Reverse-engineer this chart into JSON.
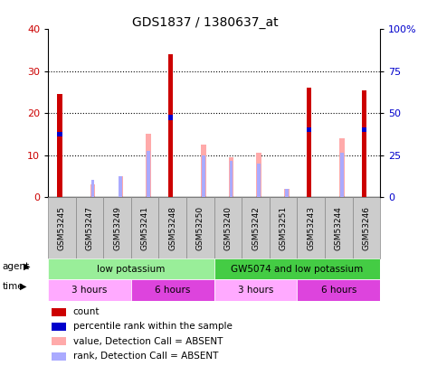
{
  "title": "GDS1837 / 1380637_at",
  "samples": [
    "GSM53245",
    "GSM53247",
    "GSM53249",
    "GSM53241",
    "GSM53248",
    "GSM53250",
    "GSM53240",
    "GSM53242",
    "GSM53251",
    "GSM53243",
    "GSM53244",
    "GSM53246"
  ],
  "count": [
    24.5,
    0,
    0,
    0,
    34,
    0,
    0,
    0,
    0,
    26,
    0,
    25.5
  ],
  "percentile_rank": [
    15,
    0,
    0,
    0,
    19,
    0,
    0,
    0,
    0,
    16,
    0,
    16
  ],
  "value_absent": [
    0,
    3,
    5,
    15,
    0,
    12.5,
    9.5,
    10.5,
    2,
    0,
    14,
    0
  ],
  "rank_absent": [
    0,
    4,
    5,
    11,
    0,
    10,
    8.5,
    8,
    2,
    0,
    10.5,
    0
  ],
  "ylim_left": [
    0,
    40
  ],
  "ylim_right": [
    0,
    100
  ],
  "yticks_left": [
    0,
    10,
    20,
    30,
    40
  ],
  "yticks_right": [
    0,
    25,
    50,
    75,
    100
  ],
  "ytick_labels_right": [
    "0",
    "25",
    "50",
    "75",
    "100%"
  ],
  "color_count": "#cc0000",
  "color_rank": "#0000cc",
  "color_value_absent": "#ffaaaa",
  "color_rank_absent": "#aaaaff",
  "agent_groups": [
    {
      "label": "low potassium",
      "start": 0,
      "end": 6,
      "color": "#99ee99"
    },
    {
      "label": "GW5074 and low potassium",
      "start": 6,
      "end": 12,
      "color": "#44cc44"
    }
  ],
  "time_groups": [
    {
      "label": "3 hours",
      "start": 0,
      "end": 3,
      "color": "#ffaaff"
    },
    {
      "label": "6 hours",
      "start": 3,
      "end": 6,
      "color": "#dd44dd"
    },
    {
      "label": "3 hours",
      "start": 6,
      "end": 9,
      "color": "#ffaaff"
    },
    {
      "label": "6 hours",
      "start": 9,
      "end": 12,
      "color": "#dd44dd"
    }
  ],
  "legend_items": [
    {
      "label": "count",
      "color": "#cc0000"
    },
    {
      "label": "percentile rank within the sample",
      "color": "#0000cc"
    },
    {
      "label": "value, Detection Call = ABSENT",
      "color": "#ffaaaa"
    },
    {
      "label": "rank, Detection Call = ABSENT",
      "color": "#aaaaff"
    }
  ],
  "title_fontsize": 10,
  "sample_bg_color": "#cccccc",
  "sample_border_color": "#888888",
  "plot_bg_color": "#ffffff"
}
